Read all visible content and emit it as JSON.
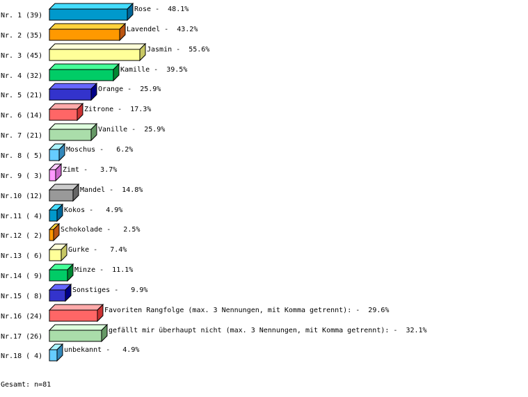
{
  "chart_data": {
    "type": "bar",
    "orientation": "horizontal",
    "style": "3d",
    "row_labels": [
      "Nr. 1 (39)",
      "Nr. 2 (35)",
      "Nr. 3 (45)",
      "Nr. 4 (32)",
      "Nr. 5 (21)",
      "Nr. 6 (14)",
      "Nr. 7 (21)",
      "Nr. 8 ( 5)",
      "Nr. 9 ( 3)",
      "Nr.10 (12)",
      "Nr.11 ( 4)",
      "Nr.12 ( 2)",
      "Nr.13 ( 6)",
      "Nr.14 ( 9)",
      "Nr.15 ( 8)",
      "Nr.16 (24)",
      "Nr.17 (26)",
      "Nr.18 ( 4)"
    ],
    "categories": [
      "Rose",
      "Lavendel",
      "Jasmin",
      "Kamille",
      "Orange",
      "Zitrone",
      "Vanille",
      "Moschus",
      "Zimt",
      "Mandel",
      "Kokos",
      "Schokolade",
      "Gurke",
      "Minze",
      "Sonstiges",
      "Favoriten Rangfolge (max. 3 Nennungen, mit Komma getrennt):",
      "gefällt mir überhaupt nicht (max. 3 Nennungen, mit Komma getrennt):",
      "unbekannt"
    ],
    "counts": [
      39,
      35,
      45,
      32,
      21,
      14,
      21,
      5,
      3,
      12,
      4,
      2,
      6,
      9,
      8,
      24,
      26,
      4
    ],
    "values": [
      48.1,
      43.2,
      55.6,
      39.5,
      25.9,
      17.3,
      25.9,
      6.2,
      3.7,
      14.8,
      4.9,
      2.5,
      7.4,
      11.1,
      9.9,
      29.6,
      32.1,
      4.9
    ],
    "unit": "%",
    "palette": [
      {
        "front": "#0099cc",
        "top": "#44ddff",
        "side": "#006699"
      },
      {
        "front": "#ff9900",
        "top": "#ffd23c",
        "side": "#bb5511"
      },
      {
        "front": "#ffff99",
        "top": "#ffffd8",
        "side": "#c8c864"
      },
      {
        "front": "#00cc66",
        "top": "#44ff99",
        "side": "#008833"
      },
      {
        "front": "#3333cc",
        "top": "#6666ff",
        "side": "#000088"
      },
      {
        "front": "#ff6666",
        "top": "#ffaaaa",
        "side": "#cc3333"
      },
      {
        "front": "#aaddaa",
        "top": "#ddffdd",
        "side": "#669966"
      },
      {
        "front": "#66ccff",
        "top": "#aaf4ff",
        "side": "#3388bb"
      },
      {
        "front": "#ff99ff",
        "top": "#ffccff",
        "side": "#cc66cc"
      },
      {
        "front": "#999999",
        "top": "#cccccc",
        "side": "#666666"
      }
    ]
  },
  "footer": {
    "total": "Gesamt: n=81"
  }
}
